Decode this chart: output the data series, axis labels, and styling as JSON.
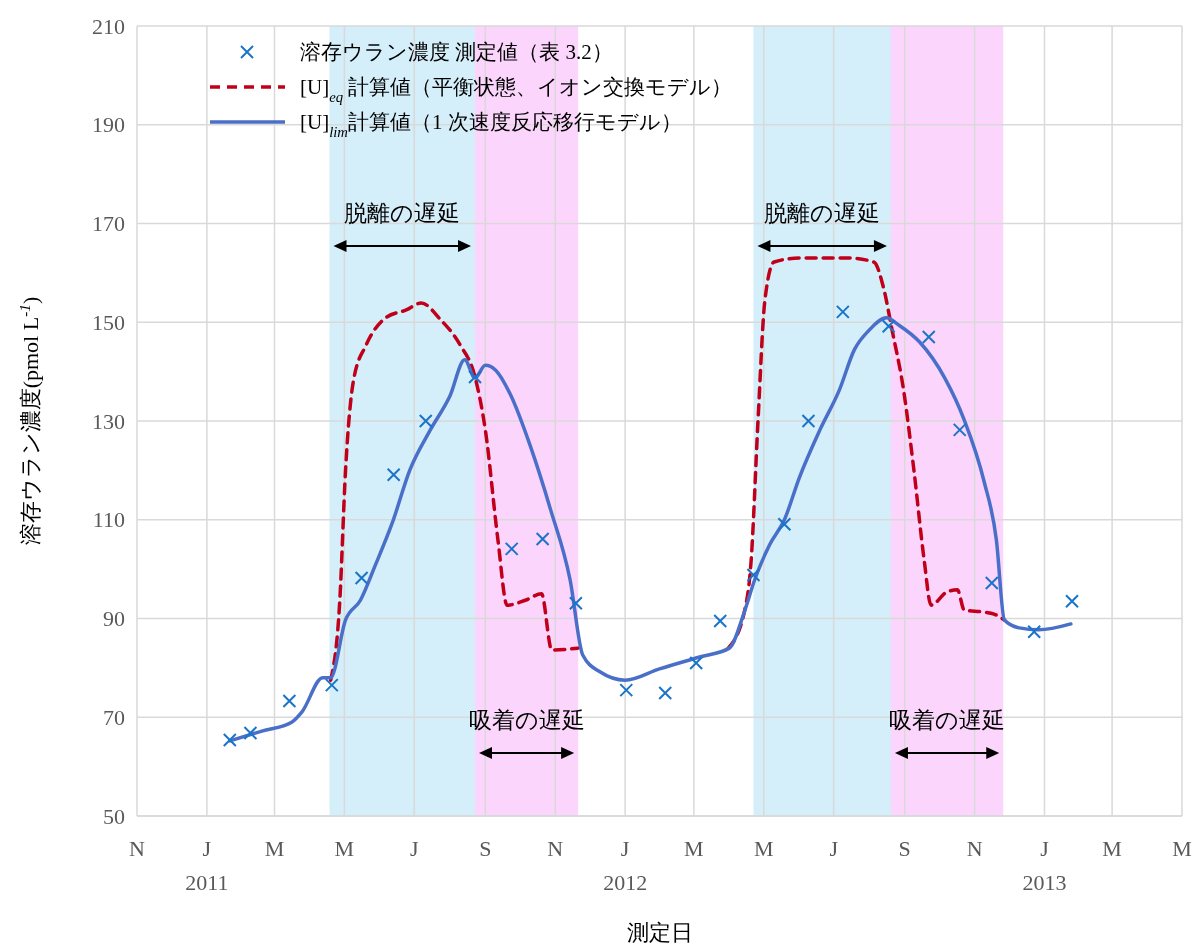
{
  "chart_data": {
    "type": "line",
    "xlabel": "測定日",
    "ylabel": "溶存ウラン濃度(pmol L$^{-1}$)",
    "xlim": [
      "2010-11-01",
      "2013-05-01"
    ],
    "xticks": [
      {
        "value": "2010-11-01",
        "label": "N"
      },
      {
        "value": "2011-01-01",
        "label": "J\n2011"
      },
      {
        "value": "2011-03-01",
        "label": "M"
      },
      {
        "value": "2011-05-01",
        "label": "M"
      },
      {
        "value": "2011-07-01",
        "label": "J"
      },
      {
        "value": "2011-09-01",
        "label": "S"
      },
      {
        "value": "2011-11-01",
        "label": "N"
      },
      {
        "value": "2012-01-01",
        "label": "J\n2012"
      },
      {
        "value": "2012-03-01",
        "label": "M"
      },
      {
        "value": "2012-05-01",
        "label": "M"
      },
      {
        "value": "2012-07-01",
        "label": "J"
      },
      {
        "value": "2012-09-01",
        "label": "S"
      },
      {
        "value": "2012-11-01",
        "label": "N"
      },
      {
        "value": "2013-01-01",
        "label": "J\n2013"
      },
      {
        "value": "2013-03-01",
        "label": "M"
      },
      {
        "value": "2013-05-01",
        "label": "M"
      }
    ],
    "ylim": [
      50,
      210
    ],
    "yticks": [
      50,
      70,
      90,
      110,
      130,
      150,
      170,
      190,
      210
    ],
    "grid": true,
    "legend": "top left",
    "bands": [
      {
        "axis": "x",
        "from": "2011-04-18",
        "to": "2011-08-23",
        "color": "#d4eefa",
        "label": "脱離の遅延"
      },
      {
        "axis": "x",
        "from": "2011-08-23",
        "to": "2011-11-21",
        "color": "#fcd5fc",
        "label": "吸着の遅延"
      },
      {
        "axis": "x",
        "from": "2012-04-22",
        "to": "2012-08-20",
        "color": "#d4eefa",
        "label": "脱離の遅延"
      },
      {
        "axis": "x",
        "from": "2012-08-20",
        "to": "2012-11-26",
        "color": "#fcd5fc",
        "label": "吸着の遅延"
      }
    ],
    "series": [
      {
        "name": "溶存ウラン濃度  測定値（表 3.2）",
        "type": "scatter",
        "marker": "cross",
        "color": "#1a75c9",
        "x": [
          "2011-01-21",
          "2011-02-08",
          "2011-03-14",
          "2011-04-20",
          "2011-05-16",
          "2011-06-13",
          "2011-07-11",
          "2011-08-23",
          "2011-09-24",
          "2011-10-21",
          "2011-11-19",
          "2012-01-02",
          "2012-02-05",
          "2012-03-03",
          "2012-03-24",
          "2012-04-22",
          "2012-05-19",
          "2012-06-09",
          "2012-07-09",
          "2012-08-18",
          "2012-09-22",
          "2012-10-19",
          "2012-11-16",
          "2012-12-23",
          "2013-01-25"
        ],
        "values": [
          65.4,
          66.8,
          73.3,
          76.5,
          98.2,
          119.1,
          130,
          138.9,
          104.1,
          106.1,
          93.1,
          75.5,
          74.9,
          81,
          89.5,
          98.8,
          109.1,
          130,
          152.1,
          149.2,
          147,
          128.2,
          97.2,
          87.3,
          93.5
        ]
      },
      {
        "name": "[U]$_{eq}$ 計算値（平衡状態、イオン交換モデル）",
        "line_style": "dashed",
        "marker": "none",
        "color": "#c0001a",
        "x": [
          "2011-04-19",
          "2011-04-27",
          "2011-05-02",
          "2011-05-09",
          "2011-05-20",
          "2011-06-06",
          "2011-06-24",
          "2011-07-07",
          "2011-07-24",
          "2011-08-10",
          "2011-08-23",
          "2011-09-01",
          "2011-09-12",
          "2011-09-20",
          "2011-10-06",
          "2011-10-20",
          "2011-10-29",
          "2011-11-21",
          "2012-01-15",
          "2012-03-31",
          "2012-04-14",
          "2012-04-20",
          "2012-04-26",
          "2012-05-02",
          "2012-05-10",
          "2012-06-01",
          "2012-07-14",
          "2012-08-05",
          "2012-08-14",
          "2012-08-21",
          "2012-08-31",
          "2012-09-09",
          "2012-09-18",
          "2012-09-24",
          "2012-10-08",
          "2012-10-17",
          "2012-10-23",
          "2012-11-09",
          "2012-11-18",
          "2012-11-27"
        ],
        "values": [
          77.5,
          93.7,
          120,
          138.3,
          145.4,
          150.9,
          152.5,
          153.9,
          150.5,
          145.4,
          138.9,
          128.2,
          105.9,
          92.7,
          93.7,
          95,
          83.6,
          84,
          null,
          84,
          91.3,
          101.8,
          130.2,
          154.5,
          162.2,
          163,
          163,
          162.2,
          156.5,
          148.4,
          136.3,
          120.1,
          101.8,
          92.7,
          95.4,
          95.8,
          91.7,
          91.3,
          90.9,
          89.7
        ]
      },
      {
        "name": "[U]$_{lim}$計算値（1 次速度反応移行モデル）",
        "line_style": "solid",
        "marker": "none",
        "color": "#4a6fc9",
        "x": [
          "2011-01-21",
          "2011-02-18",
          "2011-03-16",
          "2011-03-25",
          "2011-04-12",
          "2011-04-19",
          "2011-05-02",
          "2011-05-15",
          "2011-05-28",
          "2011-06-12",
          "2011-06-27",
          "2011-07-15",
          "2011-08-01",
          "2011-08-14",
          "2011-08-23",
          "2011-09-01",
          "2011-09-10",
          "2011-09-23",
          "2011-10-10",
          "2011-10-28",
          "2011-11-14",
          "2011-11-25",
          "2011-12-10",
          "2012-01-01",
          "2012-01-31",
          "2012-03-06",
          "2012-04-01",
          "2012-04-14",
          "2012-04-23",
          "2012-05-06",
          "2012-05-19",
          "2012-06-01",
          "2012-06-19",
          "2012-07-06",
          "2012-07-19",
          "2012-08-01",
          "2012-08-16",
          "2012-08-27",
          "2012-09-14",
          "2012-10-06",
          "2012-10-23",
          "2012-11-09",
          "2012-11-20",
          "2012-11-27",
          "2012-12-10",
          "2012-12-27",
          "2013-01-24"
        ],
        "values": [
          65.2,
          67.2,
          69,
          71.1,
          78,
          78,
          89.7,
          93.7,
          100.8,
          109.5,
          120,
          128.2,
          135,
          142.4,
          138.7,
          141.3,
          140.3,
          135.3,
          125.1,
          112,
          97.8,
          82.6,
          79.2,
          77.5,
          79.8,
          82.2,
          84,
          91.3,
          97.8,
          104.9,
          110,
          118.5,
          128.2,
          136.3,
          144.4,
          148.4,
          150.9,
          149.4,
          146,
          138.7,
          130.2,
          118,
          105.9,
          89.7,
          88.1,
          87.7,
          88.9
        ]
      }
    ]
  }
}
